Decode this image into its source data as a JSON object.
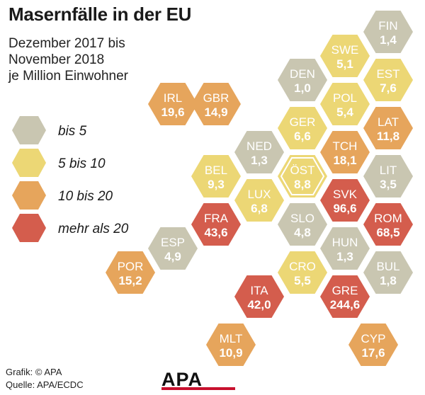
{
  "title": "Masernfälle in der EU",
  "subtitle": [
    "Dezember 2017 bis",
    "November 2018",
    "je Million Einwohner"
  ],
  "colors": {
    "bis5": "#c9c6b1",
    "5bis10": "#ecd775",
    "10bis20": "#e6a55c",
    "mehr20": "#d45d4d"
  },
  "legend": [
    {
      "label": "bis 5",
      "color": "#c9c6b1"
    },
    {
      "label": "5 bis 10",
      "color": "#ecd775"
    },
    {
      "label": "10 bis 20",
      "color": "#e6a55c"
    },
    {
      "label": "mehr als 20",
      "color": "#d45d4d"
    }
  ],
  "countries": [
    {
      "code": "FIN",
      "value": "1,4",
      "category": "bis5"
    },
    {
      "code": "SWE",
      "value": "5,1",
      "category": "5bis10"
    },
    {
      "code": "DEN",
      "value": "1,0",
      "category": "bis5"
    },
    {
      "code": "EST",
      "value": "7,6",
      "category": "5bis10"
    },
    {
      "code": "IRL",
      "value": "19,6",
      "category": "10bis20"
    },
    {
      "code": "GBR",
      "value": "14,9",
      "category": "10bis20"
    },
    {
      "code": "POL",
      "value": "5,4",
      "category": "5bis10"
    },
    {
      "code": "GER",
      "value": "6,6",
      "category": "5bis10"
    },
    {
      "code": "LAT",
      "value": "11,8",
      "category": "10bis20"
    },
    {
      "code": "NED",
      "value": "1,3",
      "category": "bis5"
    },
    {
      "code": "TCH",
      "value": "18,1",
      "category": "10bis20"
    },
    {
      "code": "BEL",
      "value": "9,3",
      "category": "5bis10"
    },
    {
      "code": "ÖST",
      "value": "8,8",
      "category": "5bis10",
      "highlight": true
    },
    {
      "code": "LIT",
      "value": "3,5",
      "category": "bis5"
    },
    {
      "code": "LUX",
      "value": "6,8",
      "category": "5bis10"
    },
    {
      "code": "SVK",
      "value": "96,6",
      "category": "mehr20"
    },
    {
      "code": "FRA",
      "value": "43,6",
      "category": "mehr20"
    },
    {
      "code": "SLO",
      "value": "4,8",
      "category": "bis5"
    },
    {
      "code": "ROM",
      "value": "68,5",
      "category": "mehr20"
    },
    {
      "code": "ESP",
      "value": "4,9",
      "category": "bis5"
    },
    {
      "code": "HUN",
      "value": "1,3",
      "category": "bis5"
    },
    {
      "code": "POR",
      "value": "15,2",
      "category": "10bis20"
    },
    {
      "code": "CRO",
      "value": "5,5",
      "category": "5bis10"
    },
    {
      "code": "BUL",
      "value": "1,8",
      "category": "bis5"
    },
    {
      "code": "ITA",
      "value": "42,0",
      "category": "mehr20"
    },
    {
      "code": "GRE",
      "value": "244,6",
      "category": "mehr20"
    },
    {
      "code": "MLT",
      "value": "10,9",
      "category": "10bis20"
    },
    {
      "code": "CYP",
      "value": "17,6",
      "category": "10bis20"
    }
  ],
  "credits": {
    "grafik": "Grafik: © APA",
    "quelle": "Quelle: APA/ECDC"
  },
  "logo": "APA"
}
